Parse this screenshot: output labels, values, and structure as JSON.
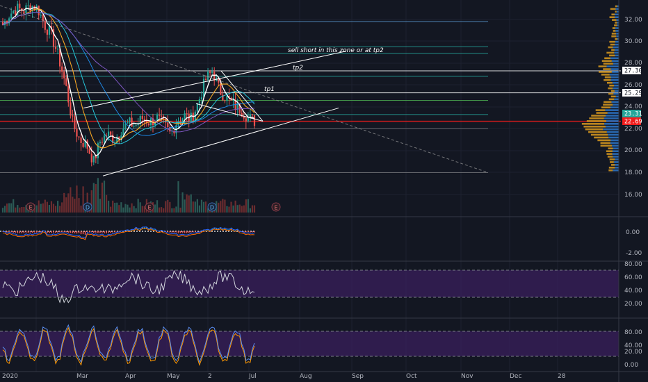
{
  "chart_data": [
    {
      "type": "candlestick",
      "title": "",
      "y_axis": {
        "ticks": [
          "32.00",
          "30.00",
          "28.00",
          "26.00",
          "24.00",
          "22.00",
          "20.00",
          "18.00",
          "16.00"
        ]
      },
      "x_axis": {
        "ticks": [
          "2020",
          "Mar",
          "Apr",
          "May",
          "2",
          "Jul",
          "Aug",
          "Sep",
          "Oct",
          "Nov",
          "Dec",
          "28"
        ]
      },
      "price_badges": [
        {
          "value": "27.30",
          "bg": "#ffffff",
          "fg": "#131722"
        },
        {
          "value": "25.29",
          "bg": "#ffffff",
          "fg": "#131722"
        },
        {
          "value": "23.31",
          "bg": "#26a69a",
          "fg": "#ffffff"
        },
        {
          "value": "22.69",
          "bg": "#ef1c1c",
          "fg": "#ffffff"
        }
      ],
      "annotations": [
        {
          "id": "sell_note",
          "text": "sell short in this zone or at tp2",
          "price": 29.0
        },
        {
          "id": "tp2",
          "text": "tp2",
          "price": 27.7
        },
        {
          "id": "tp1",
          "text": "tp1",
          "price": 25.6
        }
      ],
      "horizontal_levels": [
        {
          "price": 31.8,
          "color": "#5b9bd5"
        },
        {
          "price": 29.5,
          "color": "#26a69a"
        },
        {
          "price": 28.9,
          "color": "#26a69a"
        },
        {
          "price": 27.3,
          "color": "#ffffff"
        },
        {
          "price": 26.8,
          "color": "#26a69a"
        },
        {
          "price": 25.29,
          "color": "#ffffff"
        },
        {
          "price": 24.6,
          "color": "#4caf50"
        },
        {
          "price": 23.31,
          "color": "#26a69a"
        },
        {
          "price": 22.69,
          "color": "#ef1c1c"
        },
        {
          "price": 22.0,
          "color": "#9e9e9e"
        },
        {
          "price": 18.0,
          "color": "#9e9e9e"
        }
      ],
      "event_markers": [
        {
          "label": "E",
          "kind": "earnings"
        },
        {
          "label": "D",
          "kind": "dividend"
        },
        {
          "label": "E",
          "kind": "earnings"
        },
        {
          "label": "D",
          "kind": "dividend"
        },
        {
          "label": "E",
          "kind": "earnings"
        }
      ],
      "price_path": [
        31.5,
        32.5,
        33.0,
        32.8,
        33.3,
        33.0,
        31.5,
        30.5,
        28.5,
        26.0,
        22.5,
        21.0,
        20.5,
        19.0,
        21.0,
        21.5,
        21.0,
        22.0,
        22.5,
        22.3,
        23.0,
        22.6,
        23.0,
        22.4,
        21.5,
        22.8,
        23.2,
        22.9,
        24.5,
        26.5,
        27.3,
        25.5,
        24.8,
        24.2,
        23.8,
        23.1,
        22.7
      ]
    },
    {
      "type": "line",
      "name_hint": "macd",
      "y_axis": {
        "ticks": [
          "0.00",
          "-2.00"
        ]
      }
    },
    {
      "type": "line",
      "name_hint": "rsi",
      "y_axis": {
        "ticks": [
          "80.00",
          "60.00",
          "40.00",
          "20.00"
        ]
      },
      "band": [
        30,
        70
      ]
    },
    {
      "type": "line",
      "name_hint": "stoch",
      "y_axis": {
        "ticks": [
          "80.00",
          "40.00",
          "20.00",
          "0.00"
        ]
      },
      "band": [
        20,
        80
      ]
    }
  ],
  "colors": {
    "background": "#131722",
    "grid": "#1e2230",
    "up": "#26a69a",
    "down": "#ef5350",
    "band_fill": "#3a1f5c",
    "rsi_line": "#d1d4dc",
    "stoch_k": "#5b8def",
    "stoch_d": "#ff9800"
  }
}
